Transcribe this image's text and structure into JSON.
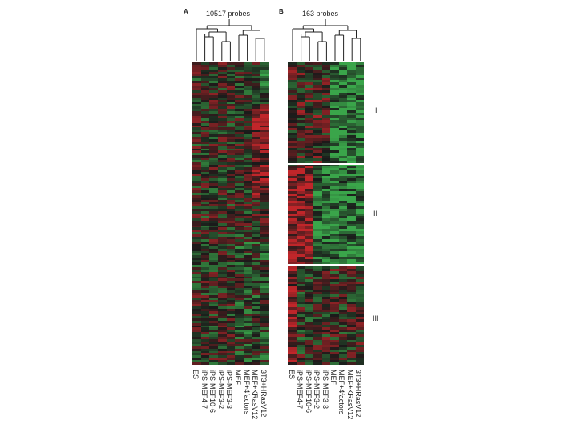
{
  "figure": {
    "panel_a": {
      "letter": "A",
      "probes_label": "10517 probes",
      "columns": [
        "ES",
        "iPS-MEF4-7",
        "iPS-MEF10-6",
        "iPS-MEF3-2",
        "iPS-MEF3-3",
        "MEF",
        "MEF+4factors",
        "MEF+KRasV12",
        "3T3+HRasV12"
      ]
    },
    "panel_b": {
      "letter": "B",
      "probes_label": "163 probes",
      "columns": [
        "ES",
        "iPS-MEF4-7",
        "iPS-MEF10-6",
        "iPS-MEF3-2",
        "iPS-MEF3-3",
        "MEF",
        "MEF+4factors",
        "MEF+KRasV12",
        "3T3+HRasV12"
      ],
      "clusters": [
        "I",
        "II",
        "III"
      ]
    },
    "colors": {
      "red": "#c0262a",
      "green": "#3aa54a",
      "black": "#1a1a1a"
    }
  }
}
